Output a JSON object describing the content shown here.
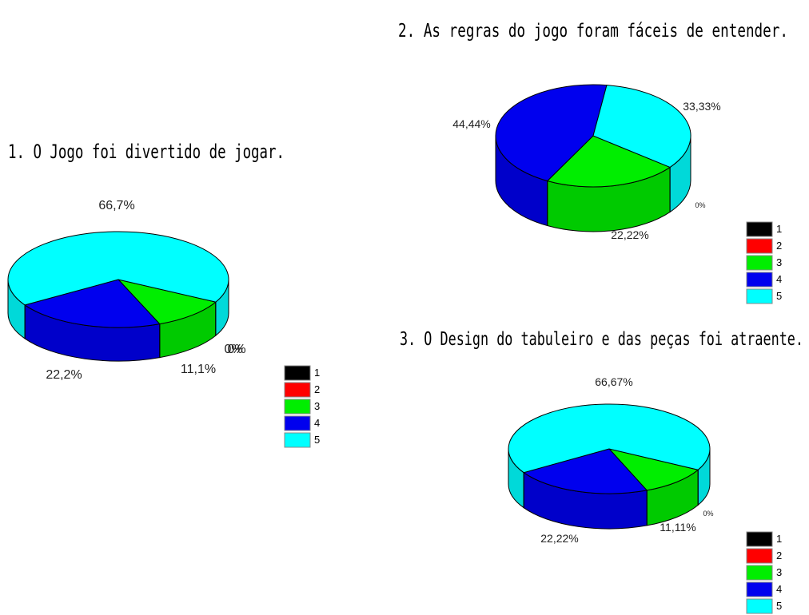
{
  "chart_data": [
    {
      "type": "pie",
      "title": "1. O Jogo foi divertido de jogar.",
      "categories": [
        "1",
        "2",
        "3",
        "4",
        "5"
      ],
      "values": [
        0,
        0,
        11.1,
        22.2,
        66.7
      ],
      "value_labels": [
        "0%",
        "0%",
        "11,1%",
        "22,2%",
        "66,7%"
      ],
      "legend": [
        "1",
        "2",
        "3",
        "4",
        "5"
      ],
      "legend_position": "right"
    },
    {
      "type": "pie",
      "title": "2. As regras do jogo foram fáceis de entender.",
      "categories": [
        "1",
        "2",
        "3",
        "4",
        "5"
      ],
      "values": [
        0,
        0,
        22.22,
        44.44,
        33.33
      ],
      "value_labels": [
        "0%",
        "0%",
        "22,22%",
        "44,44%",
        "33,33%"
      ],
      "legend": [
        "1",
        "2",
        "3",
        "4",
        "5"
      ],
      "legend_position": "bottom-right"
    },
    {
      "type": "pie",
      "title": "3. O Design do tabuleiro e das peças foi atraente.",
      "categories": [
        "1",
        "2",
        "3",
        "4",
        "5"
      ],
      "values": [
        0,
        0,
        11.11,
        22.22,
        66.67
      ],
      "value_labels": [
        "0%",
        "0%",
        "11,11%",
        "22,22%",
        "66,67%"
      ],
      "legend": [
        "1",
        "2",
        "3",
        "4",
        "5"
      ],
      "legend_position": "bottom-right"
    }
  ],
  "colors": {
    "1": "#000000",
    "2": "#ff0000",
    "3": "#00ee00",
    "4": "#0000ee",
    "5": "#00ffff"
  }
}
